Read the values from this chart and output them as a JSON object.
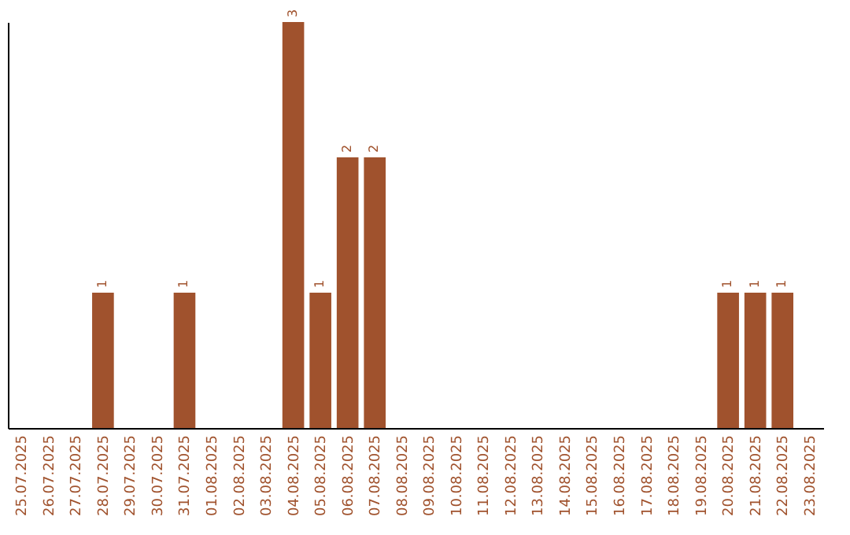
{
  "chart_data": {
    "type": "bar",
    "categories": [
      "25.07.2025",
      "26.07.2025",
      "27.07.2025",
      "28.07.2025",
      "29.07.2025",
      "30.07.2025",
      "31.07.2025",
      "01.08.2025",
      "02.08.2025",
      "03.08.2025",
      "04.08.2025",
      "05.08.2025",
      "06.08.2025",
      "07.08.2025",
      "08.08.2025",
      "09.08.2025",
      "10.08.2025",
      "11.08.2025",
      "12.08.2025",
      "13.08.2025",
      "14.08.2025",
      "15.08.2025",
      "16.08.2025",
      "17.08.2025",
      "18.08.2025",
      "19.08.2025",
      "20.08.2025",
      "21.08.2025",
      "22.08.2025",
      "23.08.2025"
    ],
    "values": [
      0,
      0,
      0,
      1,
      0,
      0,
      1,
      0,
      0,
      0,
      3,
      1,
      2,
      2,
      0,
      0,
      0,
      0,
      0,
      0,
      0,
      0,
      0,
      0,
      0,
      0,
      1,
      1,
      1,
      0
    ],
    "value_labels": [
      null,
      null,
      null,
      "1",
      null,
      null,
      "1",
      null,
      null,
      null,
      "3",
      "1",
      "2",
      "2",
      null,
      null,
      null,
      null,
      null,
      null,
      null,
      null,
      null,
      null,
      null,
      null,
      "1",
      "1",
      "1",
      null
    ],
    "color": "#a0522d",
    "tick_labels": "x"
  }
}
